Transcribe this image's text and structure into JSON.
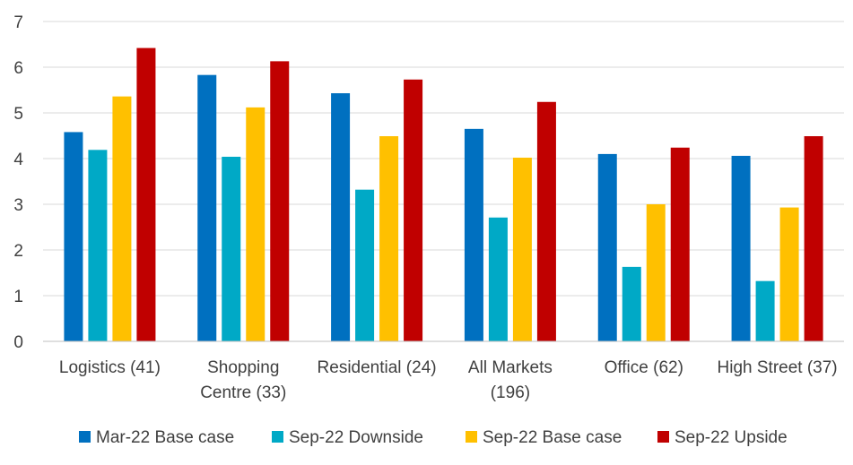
{
  "chart_data": {
    "type": "bar",
    "title": "",
    "xlabel": "",
    "ylabel": "",
    "ylim": [
      0,
      7
    ],
    "yticks": [
      "0",
      "1",
      "2",
      "3",
      "4",
      "5",
      "6",
      "7"
    ],
    "grid": true,
    "legend_position": "bottom",
    "categories": [
      [
        "Logistics (41)"
      ],
      [
        "Shopping",
        "Centre (33)"
      ],
      [
        "Residential (24)"
      ],
      [
        "All Markets",
        "(196)"
      ],
      [
        "Office (62)"
      ],
      [
        "High Street (37)"
      ]
    ],
    "series": [
      {
        "name": "Mar-22 Base case",
        "color": "#0070c0",
        "values": [
          4.58,
          5.83,
          5.43,
          4.65,
          4.1,
          4.06
        ]
      },
      {
        "name": "Sep-22 Downside",
        "color": "#00a9c6",
        "values": [
          4.19,
          4.04,
          3.32,
          2.71,
          1.63,
          1.32
        ]
      },
      {
        "name": "Sep-22 Base case",
        "color": "#ffc000",
        "values": [
          5.36,
          5.12,
          4.49,
          4.02,
          3.0,
          2.93
        ]
      },
      {
        "name": "Sep-22 Upside",
        "color": "#c00000",
        "values": [
          6.42,
          6.13,
          5.73,
          5.24,
          4.24,
          4.49
        ]
      }
    ]
  }
}
